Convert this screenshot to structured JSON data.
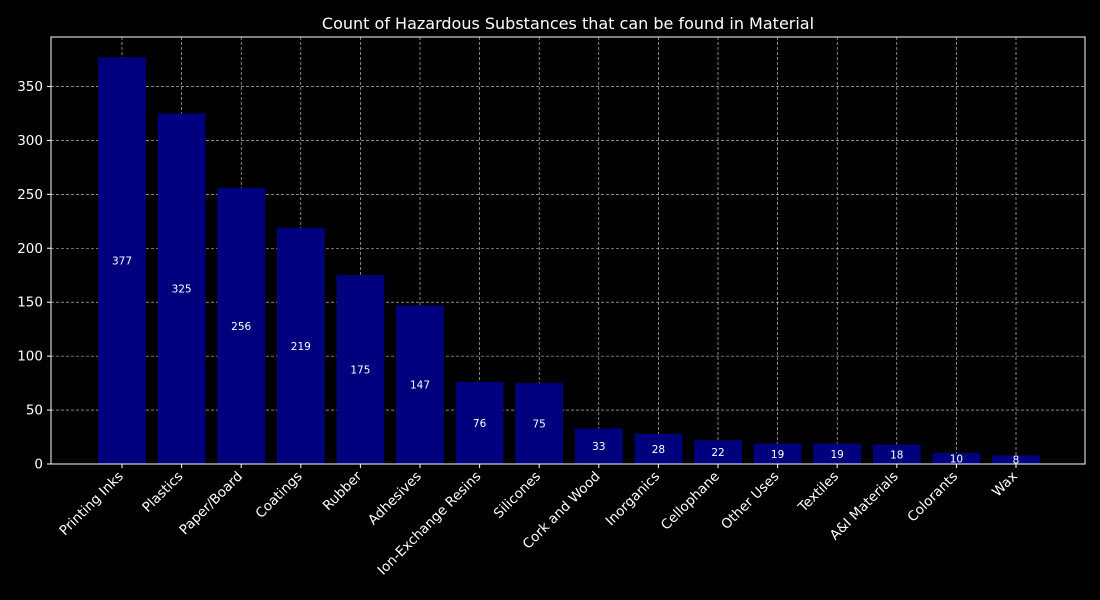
{
  "chart_data": {
    "type": "bar",
    "title": "Count of Hazardous Substances that can be found in Material",
    "xlabel": "",
    "ylabel": "",
    "categories": [
      "Printing Inks",
      "Plastics",
      "Paper/Board",
      "Coatings",
      "Rubber",
      "Adhesives",
      "Ion-Exchange Resins",
      "Silicones",
      "Cork and Wood",
      "Inorganics",
      "Cellophane",
      "Other Uses",
      "Textiles",
      "A&I Materials",
      "Colorants",
      "Wax"
    ],
    "values": [
      377,
      325,
      256,
      219,
      175,
      147,
      76,
      75,
      33,
      28,
      22,
      19,
      19,
      18,
      10,
      8
    ],
    "ylim": [
      0,
      395.85
    ],
    "yticks": [
      0,
      50,
      100,
      150,
      200,
      250,
      300,
      350
    ],
    "grid": true,
    "bar_color": "#00007f",
    "background_color": "#000000",
    "text_color": "#ffffff"
  }
}
